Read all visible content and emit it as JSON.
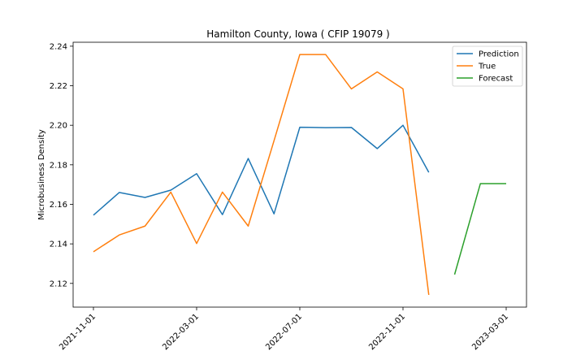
{
  "chart_data": {
    "type": "line",
    "title": "Hamilton County, Iowa ( CFIP 19079 )",
    "xlabel": "",
    "ylabel": "Microbusiness Density",
    "ylim": [
      2.108,
      2.242
    ],
    "yticks": [
      "2.12",
      "2.14",
      "2.16",
      "2.18",
      "2.20",
      "2.22",
      "2.24"
    ],
    "xtick_labels": [
      "2021-11-01",
      "2022-03-01",
      "2022-07-01",
      "2022-11-01",
      "2023-03-01"
    ],
    "x": [
      "2021-11-01",
      "2021-12-01",
      "2022-01-01",
      "2022-02-01",
      "2022-03-01",
      "2022-04-01",
      "2022-05-01",
      "2022-06-01",
      "2022-07-01",
      "2022-08-01",
      "2022-09-01",
      "2022-10-01",
      "2022-11-01",
      "2022-12-01",
      "2023-01-01",
      "2023-02-01",
      "2023-03-01"
    ],
    "grid": false,
    "legend_position": "top-right",
    "series": [
      {
        "name": "Prediction",
        "color": "#1f77b4",
        "values": [
          2.1545,
          2.166,
          2.1635,
          2.1672,
          2.1755,
          2.1548,
          2.1832,
          2.1552,
          2.199,
          2.1988,
          2.1989,
          2.1882,
          2.2,
          2.1762,
          null,
          null,
          null
        ]
      },
      {
        "name": "True",
        "color": "#ff7f0e",
        "values": [
          2.136,
          2.1445,
          2.149,
          2.1662,
          2.1402,
          2.1662,
          2.149,
          2.1922,
          2.2358,
          2.2358,
          2.2184,
          2.227,
          2.2184,
          2.1142,
          null,
          null,
          null
        ]
      },
      {
        "name": "Forecast",
        "color": "#2ca02c",
        "values": [
          null,
          null,
          null,
          null,
          null,
          null,
          null,
          null,
          null,
          null,
          null,
          null,
          null,
          null,
          2.1245,
          2.1705,
          2.1705
        ]
      }
    ]
  }
}
